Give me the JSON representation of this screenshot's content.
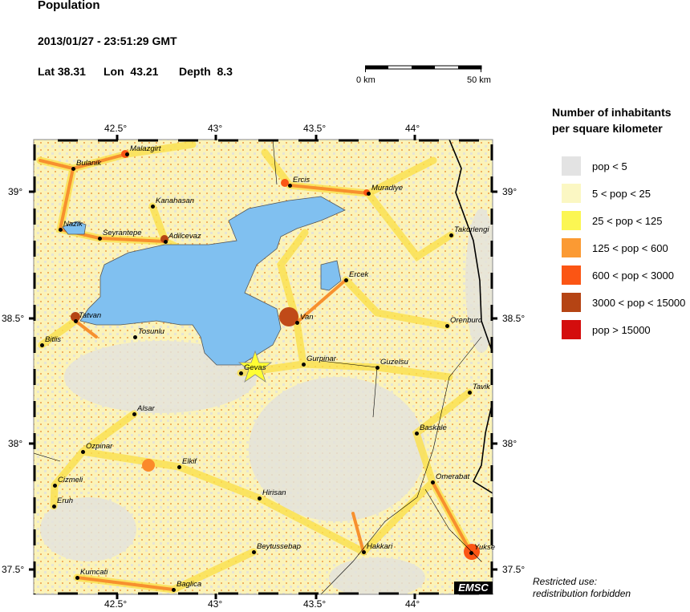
{
  "header": {
    "title": "Population",
    "datetime": "2013/01/27 - 23:51:29 GMT",
    "lat_label": "Lat 38.31",
    "lon_label": "Lon  43.21",
    "depth_label": "Depth  8.3"
  },
  "scale_bar": {
    "start": "0 km",
    "end": "50 km"
  },
  "legend": {
    "title_line1": "Number of inhabitants",
    "title_line2": "per square kilometer",
    "items": [
      {
        "label": "pop < 5",
        "color": "#e3e3e3"
      },
      {
        "label": "5 < pop < 25",
        "color": "#fbf7c3"
      },
      {
        "label": "25 < pop < 125",
        "color": "#fbf653"
      },
      {
        "label": "125 < pop < 600",
        "color": "#fb9a33"
      },
      {
        "label": "600 < pop < 3000",
        "color": "#fb5514"
      },
      {
        "label": "3000 < pop < 15000",
        "color": "#b54414"
      },
      {
        "label": "pop > 15000",
        "color": "#d40d0d"
      }
    ]
  },
  "axes": {
    "lon_ticks": [
      "42.5°",
      "43°",
      "43.5°",
      "44°"
    ],
    "lat_ticks": [
      "39°",
      "38.5°",
      "38°",
      "37.5°"
    ]
  },
  "map": {
    "lake_color": "#80c0f0",
    "epicenter_color": "#ffff33",
    "cities": [
      "Malazgirt",
      "Bulanik",
      "Ercis",
      "Muradiye",
      "Kanahasan",
      "Nazik",
      "Seyrantepe",
      "Adilcevaz",
      "Takurlengi",
      "Ercek",
      "Van",
      "Tatvan",
      "Orenburc",
      "Tosunlu",
      "Bitlis",
      "Gevas",
      "Gurpinar",
      "Guzelsu",
      "Tavik",
      "Alsar",
      "Baskale",
      "Ozpinar",
      "Elkif",
      "Cizmeli",
      "Omerabat",
      "Hirisan",
      "Eruh",
      "Beytussebap",
      "Hakkari",
      "Yukse",
      "Kumcati",
      "Baglica"
    ],
    "watermark": "EMSC"
  },
  "note": {
    "line1": "Restricted use:",
    "line2": "redistribution forbidden"
  }
}
